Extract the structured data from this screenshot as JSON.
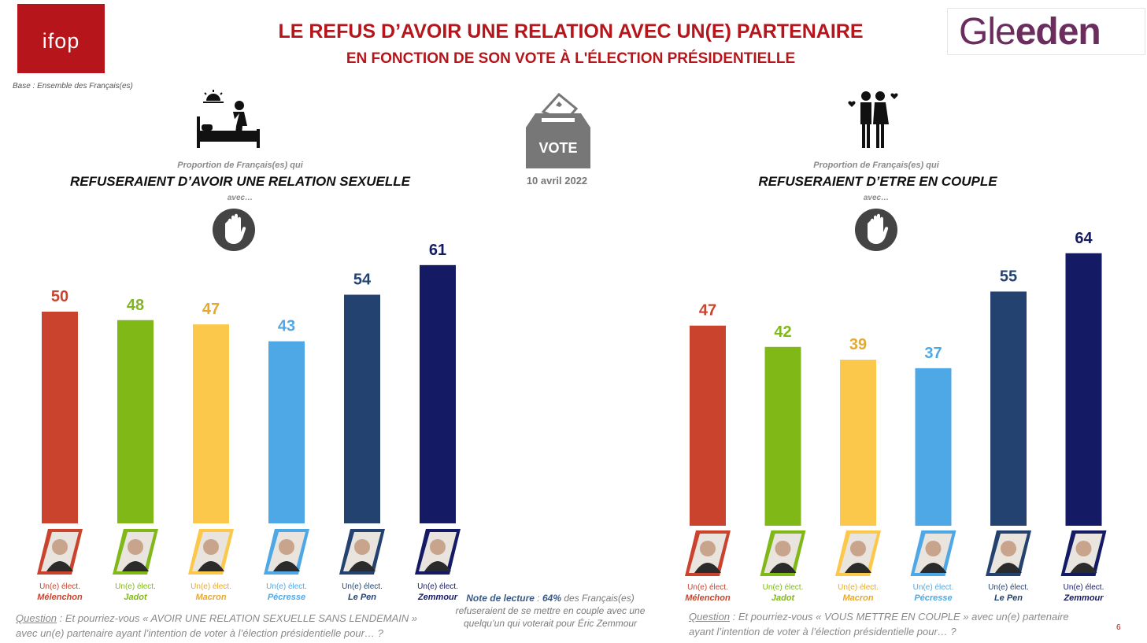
{
  "logos": {
    "ifop": "ifop",
    "gleeden_light": "Gle",
    "gleeden_bold": "eden"
  },
  "header": {
    "title": "LE REFUS D’AVOIR UNE RELATION AVEC UN(E) PARTENAIRE",
    "subtitle": "EN FONCTION DE SON VOTE À L'ÉLECTION PRÉSIDENTIELLE",
    "base": "Base :  Ensemble des Français(es)"
  },
  "vote": {
    "label": "VOTE",
    "date": "10 avril 2022"
  },
  "colors": {
    "brand_red": "#b5151b",
    "melenchon": "#c9432d",
    "jadot": "#80b818",
    "macron": "#fcc84c",
    "pecresse": "#4fa8e6",
    "lepen": "#24426f",
    "zemmour": "#141a63"
  },
  "icons": [
    "bed-sunrise-icon",
    "couple-hearts-icon",
    "ballot-box-icon",
    "stop-hand-icon"
  ],
  "chart_data": [
    {
      "type": "bar",
      "proportion": "Proportion de Français(es) qui",
      "title": "REFUSERAIENT D’AVOIR UNE RELATION SEXUELLE",
      "avec": "avec…",
      "categories": [
        "Mélenchon",
        "Jadot",
        "Macron",
        "Pécresse",
        "Le Pen",
        "Zemmour"
      ],
      "prefix": "Un(e) élect.",
      "values": [
        50,
        48,
        47,
        43,
        54,
        61
      ],
      "colors": [
        "#c9432d",
        "#80b818",
        "#fcc84c",
        "#4fa8e6",
        "#24426f",
        "#141a63"
      ],
      "label_colors": [
        "#c9432d",
        "#80b818",
        "#e5a92e",
        "#4fa8e6",
        "#24426f",
        "#141a63"
      ],
      "ylim": [
        0,
        100
      ]
    },
    {
      "type": "bar",
      "proportion": "Proportion de Français(es)  qui",
      "title": "REFUSERAIENT D’ETRE EN COUPLE",
      "avec": "avec…",
      "categories": [
        "Mélenchon",
        "Jadot",
        "Macron",
        "Pécresse",
        "Le Pen",
        "Zemmour"
      ],
      "prefix": "Un(e) élect.",
      "values": [
        47,
        42,
        39,
        37,
        55,
        64
      ],
      "colors": [
        "#c9432d",
        "#80b818",
        "#fcc84c",
        "#4fa8e6",
        "#24426f",
        "#141a63"
      ],
      "label_colors": [
        "#c9432d",
        "#80b818",
        "#e5a92e",
        "#4fa8e6",
        "#24426f",
        "#141a63"
      ],
      "ylim": [
        0,
        100
      ]
    }
  ],
  "footer": {
    "left_question_label": "Question",
    "left_question_pre": " :  Et pourriez-vous « ",
    "left_question_emph": "AVOIR UNE RELATION SEXUELLE SANS LENDEMAIN",
    "left_question_post": " »",
    "left_question_line2": "avec un(e) partenaire ayant l’intention de voter à l’élection présidentielle pour… ?",
    "note_label": "Note de lecture",
    "note_sep": " : ",
    "note_value": "64%",
    "note_text1": " des Français(es)",
    "note_text2": "refuseraient de se mettre en couple avec une",
    "note_text3": "quelqu’un qui voterait pour Éric Zemmour",
    "right_question_label": "Question",
    "right_question_pre": " :  Et pourriez-vous « ",
    "right_question_emph": "VOUS METTRE EN COUPLE",
    "right_question_post": " » avec un(e) partenaire",
    "right_question_line2": "ayant l’intention de voter à l’élection présidentielle pour… ?",
    "page_number": "6"
  }
}
